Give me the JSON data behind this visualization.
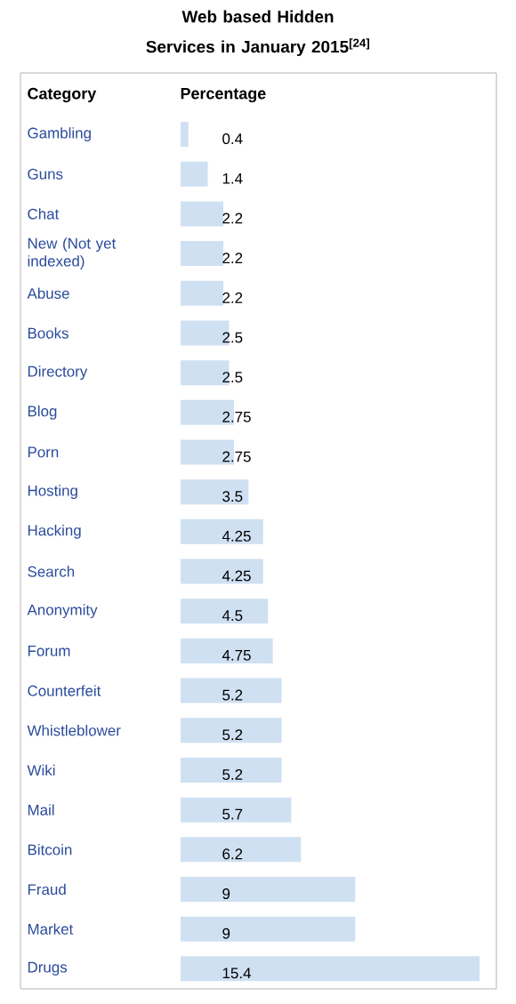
{
  "chart_data": {
    "type": "bar",
    "orientation": "horizontal",
    "title": "Web based Hidden Services in January 2015$^{[24]}$",
    "annotations": [
      "Category",
      "Percentage"
    ],
    "categories": [
      "Gambling",
      "Guns",
      "Chat",
      "New (Not yet indexed)",
      "Abuse",
      "Books",
      "Directory",
      "Blog",
      "Porn",
      "Hosting",
      "Hacking",
      "Search",
      "Anonymity",
      "Forum",
      "Counterfeit",
      "Whistleblower",
      "Wiki",
      "Mail",
      "Bitcoin",
      "Fraud",
      "Market",
      "Drugs"
    ],
    "values": [
      0.4,
      1.4,
      2.2,
      2.2,
      2.2,
      2.5,
      2.5,
      2.75,
      2.75,
      3.5,
      4.25,
      4.25,
      4.5,
      4.75,
      5.2,
      5.2,
      5.2,
      5.7,
      6.2,
      9,
      9,
      15.4
    ],
    "color": "#cfe0f2",
    "data_labels": true
  }
}
